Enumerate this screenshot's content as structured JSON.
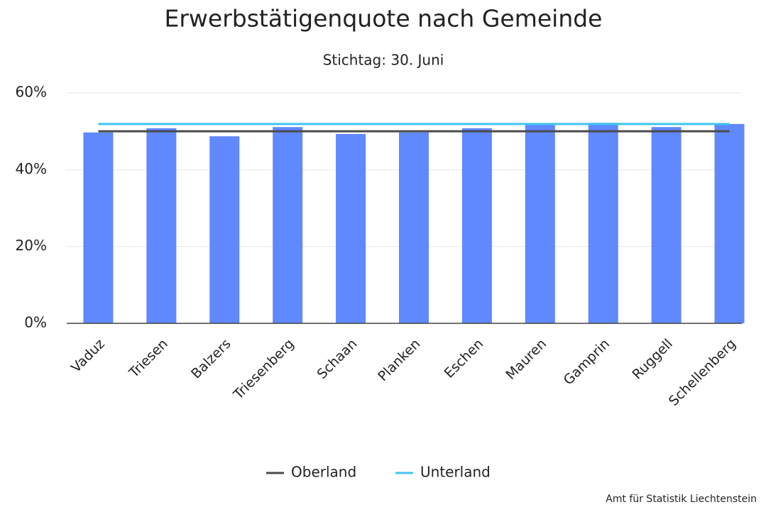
{
  "chart_data": {
    "type": "bar",
    "title": "Erwerbstätigenquote nach Gemeinde",
    "subtitle": "Stichtag: 30. Juni",
    "source": "Amt für Statistik Liechtenstein",
    "categories": [
      "Vaduz",
      "Triesen",
      "Balzers",
      "Triesenberg",
      "Schaan",
      "Planken",
      "Eschen",
      "Mauren",
      "Gamprin",
      "Ruggell",
      "Schellenberg"
    ],
    "values": [
      49.7,
      50.8,
      48.7,
      51.1,
      49.3,
      49.7,
      50.8,
      51.9,
      52.2,
      51.1,
      51.9
    ],
    "color": "#6088ff",
    "series": [
      {
        "name": "Oberland",
        "color": "#4a4a4a",
        "value": 50.0
      },
      {
        "name": "Unterland",
        "color": "#40c4f0",
        "value": 51.9
      }
    ],
    "ylim": [
      0,
      60
    ],
    "yticks": [
      {
        "value": 0,
        "label": "0%"
      },
      {
        "value": 20,
        "label": "20%"
      },
      {
        "value": 40,
        "label": "40%"
      },
      {
        "value": 60,
        "label": "60%"
      }
    ],
    "grid": true,
    "legend": "bottom"
  }
}
